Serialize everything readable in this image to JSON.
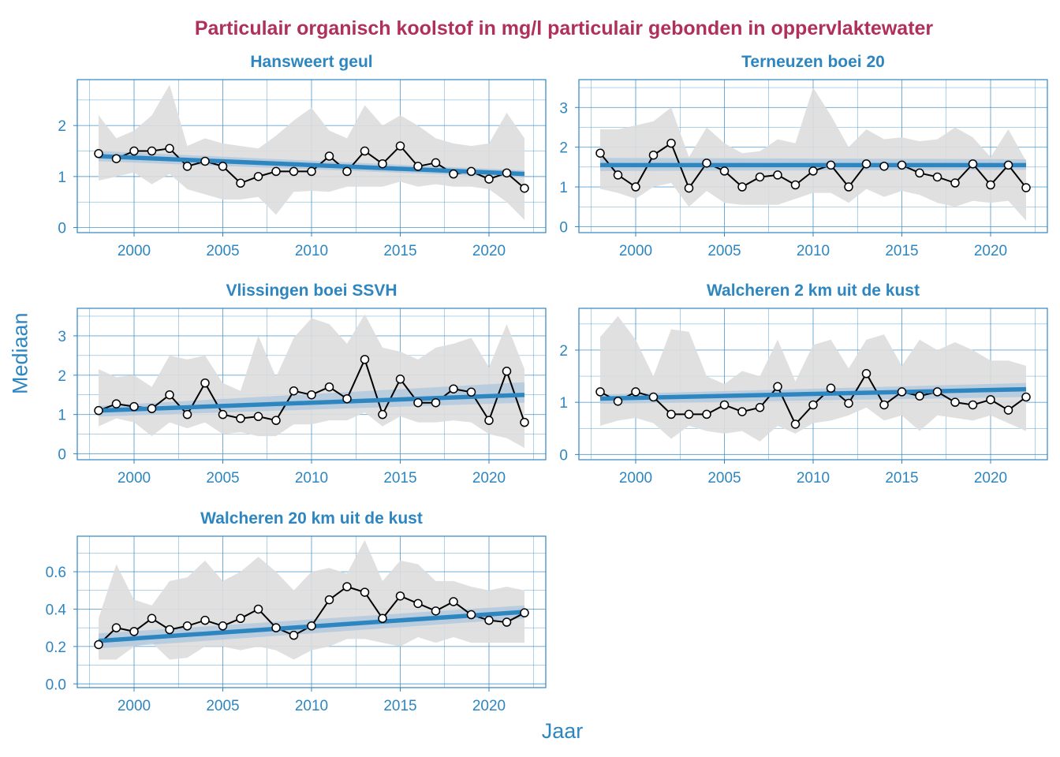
{
  "title": "Particulair organisch koolstof in mg/l particulair gebonden in oppervlaktewater",
  "xlabel": "Jaar",
  "ylabel": "Mediaan",
  "colors": {
    "title": "#b0305c",
    "axis": "#2e86c1",
    "trend": "#2e86c1",
    "trend_band": "#a9c5de",
    "range_band": "#dddddd",
    "data_line": "#000000",
    "marker_fill": "#ffffff"
  },
  "chart_data": [
    {
      "type": "line",
      "title": "Hansweert geul",
      "x": [
        1998,
        1999,
        2000,
        2001,
        2002,
        2003,
        2004,
        2005,
        2006,
        2007,
        2008,
        2009,
        2010,
        2011,
        2012,
        2013,
        2014,
        2015,
        2016,
        2017,
        2018,
        2019,
        2020,
        2021,
        2022
      ],
      "xticks": [
        2000,
        2005,
        2010,
        2015,
        2020
      ],
      "ylim": [
        -0.1,
        2.9
      ],
      "yticks": [
        0,
        1,
        2
      ],
      "values": [
        1.45,
        1.35,
        1.5,
        1.5,
        1.55,
        1.2,
        1.3,
        1.2,
        0.87,
        1.0,
        1.1,
        1.1,
        1.1,
        1.4,
        1.1,
        1.5,
        1.25,
        1.6,
        1.2,
        1.27,
        1.05,
        1.1,
        0.95,
        1.07,
        0.77
      ],
      "range_low": [
        0.92,
        1.0,
        1.08,
        0.85,
        1.05,
        0.75,
        0.65,
        0.55,
        0.55,
        0.6,
        0.25,
        0.7,
        0.72,
        0.7,
        0.8,
        0.8,
        0.8,
        0.9,
        0.8,
        0.85,
        0.8,
        0.8,
        0.75,
        0.5,
        0.15
      ],
      "range_high": [
        2.2,
        1.75,
        1.9,
        2.2,
        2.8,
        1.6,
        1.75,
        1.65,
        1.6,
        1.55,
        1.8,
        2.1,
        2.35,
        1.9,
        1.75,
        2.4,
        2.0,
        2.2,
        2.0,
        1.75,
        1.65,
        1.6,
        1.65,
        2.25,
        1.75
      ],
      "trend": [
        1.4,
        1.05
      ],
      "trend_low": [
        1.3,
        0.98
      ],
      "trend_high": [
        1.5,
        1.12
      ],
      "grid": true
    },
    {
      "type": "line",
      "title": "Terneuzen boei 20",
      "x": [
        1998,
        1999,
        2000,
        2001,
        2002,
        2003,
        2004,
        2005,
        2006,
        2007,
        2008,
        2009,
        2010,
        2011,
        2012,
        2013,
        2014,
        2015,
        2016,
        2017,
        2018,
        2019,
        2020,
        2021,
        2022
      ],
      "xticks": [
        2000,
        2005,
        2010,
        2015,
        2020
      ],
      "ylim": [
        -0.15,
        3.7
      ],
      "yticks": [
        0,
        1,
        2,
        3
      ],
      "values": [
        1.85,
        1.3,
        1.0,
        1.8,
        2.1,
        0.97,
        1.6,
        1.4,
        1.0,
        1.25,
        1.3,
        1.05,
        1.4,
        1.55,
        1.0,
        1.58,
        1.52,
        1.55,
        1.35,
        1.25,
        1.1,
        1.58,
        1.05,
        1.55,
        0.98
      ],
      "range_low": [
        0.95,
        0.85,
        0.7,
        1.0,
        1.1,
        0.5,
        0.9,
        0.6,
        0.55,
        0.55,
        0.55,
        0.7,
        0.85,
        0.85,
        0.6,
        0.95,
        0.75,
        0.9,
        0.8,
        0.6,
        0.5,
        0.65,
        0.6,
        0.65,
        0.15
      ],
      "range_high": [
        2.45,
        2.45,
        2.55,
        2.65,
        3.0,
        1.75,
        2.5,
        2.1,
        1.85,
        1.9,
        2.2,
        2.1,
        3.5,
        2.8,
        2.0,
        2.45,
        2.2,
        2.25,
        2.15,
        2.2,
        2.5,
        2.25,
        1.75,
        2.45,
        1.65
      ],
      "trend": [
        1.55,
        1.55
      ],
      "trend_low": [
        1.4,
        1.43
      ],
      "trend_high": [
        1.73,
        1.7
      ],
      "grid": true
    },
    {
      "type": "line",
      "title": "Vlissingen boei SSVH",
      "x": [
        1998,
        1999,
        2000,
        2001,
        2002,
        2003,
        2004,
        2005,
        2006,
        2007,
        2008,
        2009,
        2010,
        2011,
        2012,
        2013,
        2014,
        2015,
        2016,
        2017,
        2018,
        2019,
        2020,
        2021,
        2022
      ],
      "xticks": [
        2000,
        2005,
        2010,
        2015,
        2020
      ],
      "ylim": [
        -0.15,
        3.7
      ],
      "yticks": [
        0,
        1,
        2,
        3
      ],
      "values": [
        1.1,
        1.27,
        1.2,
        1.15,
        1.5,
        1.0,
        1.8,
        1.0,
        0.9,
        0.95,
        0.85,
        1.6,
        1.5,
        1.7,
        1.4,
        2.4,
        1.0,
        1.9,
        1.3,
        1.3,
        1.65,
        1.57,
        0.85,
        2.1,
        0.8
      ],
      "range_low": [
        0.7,
        0.9,
        0.8,
        0.45,
        0.8,
        0.65,
        0.8,
        0.5,
        0.55,
        0.45,
        0.45,
        0.75,
        0.75,
        0.85,
        0.85,
        1.05,
        0.7,
        0.95,
        0.8,
        0.8,
        0.85,
        0.8,
        0.5,
        0.4,
        0.15
      ],
      "range_high": [
        2.15,
        1.95,
        2.0,
        1.7,
        2.5,
        2.4,
        2.5,
        1.8,
        1.6,
        3.0,
        1.95,
        2.95,
        3.45,
        3.3,
        2.8,
        3.55,
        2.7,
        2.6,
        2.4,
        2.7,
        2.8,
        2.95,
        2.2,
        3.3,
        2.15
      ],
      "trend": [
        1.1,
        1.5
      ],
      "trend_low": [
        0.95,
        1.3
      ],
      "trend_high": [
        1.22,
        1.82
      ],
      "grid": true
    },
    {
      "type": "line",
      "title": "Walcheren 2 km uit de kust",
      "x": [
        1998,
        1999,
        2000,
        2001,
        2002,
        2003,
        2004,
        2005,
        2006,
        2007,
        2008,
        2009,
        2010,
        2011,
        2012,
        2013,
        2014,
        2015,
        2016,
        2017,
        2018,
        2019,
        2020,
        2021,
        2022
      ],
      "xticks": [
        2000,
        2005,
        2010,
        2015,
        2020
      ],
      "ylim": [
        -0.1,
        2.8
      ],
      "yticks": [
        0,
        1,
        2
      ],
      "values": [
        1.2,
        1.02,
        1.2,
        1.1,
        0.77,
        0.77,
        0.77,
        0.95,
        0.82,
        0.9,
        1.3,
        0.58,
        0.95,
        1.27,
        0.98,
        1.55,
        0.95,
        1.2,
        1.12,
        1.2,
        1.0,
        0.95,
        1.05,
        0.85,
        1.1
      ],
      "range_low": [
        0.55,
        0.65,
        0.7,
        0.6,
        0.3,
        0.55,
        0.45,
        0.4,
        0.45,
        0.25,
        0.55,
        0.4,
        0.6,
        0.65,
        0.75,
        0.9,
        0.65,
        0.75,
        0.45,
        0.75,
        0.7,
        0.65,
        0.75,
        0.6,
        0.45
      ],
      "range_high": [
        2.25,
        2.65,
        2.2,
        1.5,
        2.4,
        2.35,
        1.5,
        1.35,
        1.6,
        1.5,
        2.2,
        1.4,
        2.1,
        2.2,
        1.65,
        2.2,
        2.3,
        1.7,
        2.2,
        2.0,
        2.15,
        2.0,
        1.8,
        1.8,
        1.7
      ],
      "trend": [
        1.07,
        1.25
      ],
      "trend_low": [
        0.97,
        1.1
      ],
      "trend_high": [
        1.15,
        1.37
      ],
      "grid": true
    },
    {
      "type": "line",
      "title": "Walcheren 20 km uit de kust",
      "x": [
        1998,
        1999,
        2000,
        2001,
        2002,
        2003,
        2004,
        2005,
        2006,
        2007,
        2008,
        2009,
        2010,
        2011,
        2012,
        2013,
        2014,
        2015,
        2016,
        2017,
        2018,
        2019,
        2020,
        2021,
        2022
      ],
      "xticks": [
        2000,
        2005,
        2010,
        2015,
        2020
      ],
      "ylim": [
        -0.02,
        0.79
      ],
      "yticks": [
        0.0,
        0.2,
        0.4,
        0.6
      ],
      "ytick_labels": [
        "0.0",
        "0.2",
        "0.4",
        "0.6"
      ],
      "values": [
        0.21,
        0.3,
        0.28,
        0.35,
        0.29,
        0.31,
        0.34,
        0.31,
        0.35,
        0.4,
        0.3,
        0.26,
        0.31,
        0.45,
        0.52,
        0.49,
        0.35,
        0.47,
        0.43,
        0.39,
        0.44,
        0.37,
        0.34,
        0.33,
        0.38
      ],
      "range_low": [
        0.13,
        0.13,
        0.2,
        0.22,
        0.13,
        0.14,
        0.2,
        0.2,
        0.18,
        0.2,
        0.18,
        0.13,
        0.18,
        0.2,
        0.24,
        0.24,
        0.22,
        0.2,
        0.25,
        0.22,
        0.25,
        0.22,
        0.22,
        0.22,
        0.22
      ],
      "range_high": [
        0.35,
        0.64,
        0.45,
        0.42,
        0.55,
        0.57,
        0.66,
        0.55,
        0.6,
        0.68,
        0.6,
        0.5,
        0.6,
        0.62,
        0.59,
        0.77,
        0.55,
        0.66,
        0.64,
        0.55,
        0.55,
        0.52,
        0.5,
        0.52,
        0.5
      ],
      "trend": [
        0.23,
        0.385
      ],
      "trend_low": [
        0.19,
        0.35
      ],
      "trend_high": [
        0.27,
        0.42
      ],
      "grid": true
    }
  ]
}
